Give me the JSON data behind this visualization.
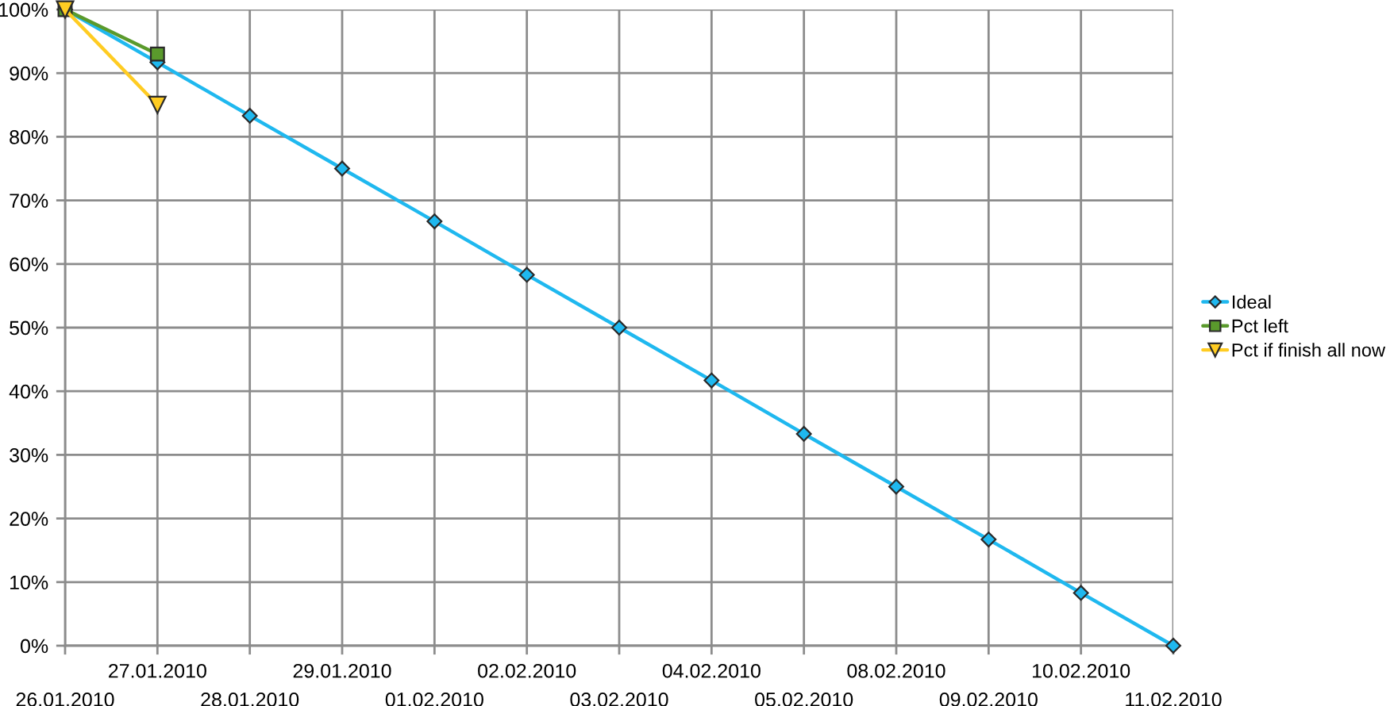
{
  "chart_data": {
    "type": "line",
    "categories": [
      "26.01.2010",
      "27.01.2010",
      "28.01.2010",
      "29.01.2010",
      "01.02.2010",
      "02.02.2010",
      "03.02.2010",
      "04.02.2010",
      "05.02.2010",
      "08.02.2010",
      "09.02.2010",
      "10.02.2010",
      "11.02.2010"
    ],
    "series": [
      {
        "name": "Ideal",
        "color": "#1fb8ef",
        "marker": "diamond",
        "values": [
          100,
          91.7,
          83.3,
          75,
          66.7,
          58.3,
          50,
          41.7,
          33.3,
          25,
          16.7,
          8.3,
          0
        ]
      },
      {
        "name": "Pct left",
        "color": "#5a9a2c",
        "marker": "square",
        "values": [
          100,
          93,
          null,
          null,
          null,
          null,
          null,
          null,
          null,
          null,
          null,
          null,
          null
        ]
      },
      {
        "name": "Pct if finish all now",
        "color": "#ffcc22",
        "marker": "triangle",
        "values": [
          100,
          85,
          null,
          null,
          null,
          null,
          null,
          null,
          null,
          null,
          null,
          null,
          null
        ]
      }
    ],
    "ylim": [
      0,
      100
    ],
    "yticks": [
      {
        "value": 0,
        "label": "0%"
      },
      {
        "value": 10,
        "label": "10%"
      },
      {
        "value": 20,
        "label": "20%"
      },
      {
        "value": 30,
        "label": "30%"
      },
      {
        "value": 40,
        "label": "40%"
      },
      {
        "value": 50,
        "label": "50%"
      },
      {
        "value": 60,
        "label": "60%"
      },
      {
        "value": 70,
        "label": "70%"
      },
      {
        "value": 80,
        "label": "80%"
      },
      {
        "value": 90,
        "label": "90%"
      },
      {
        "value": 100,
        "label": "100%"
      }
    ],
    "grid": true,
    "legend": "right",
    "line_style": "solid"
  }
}
